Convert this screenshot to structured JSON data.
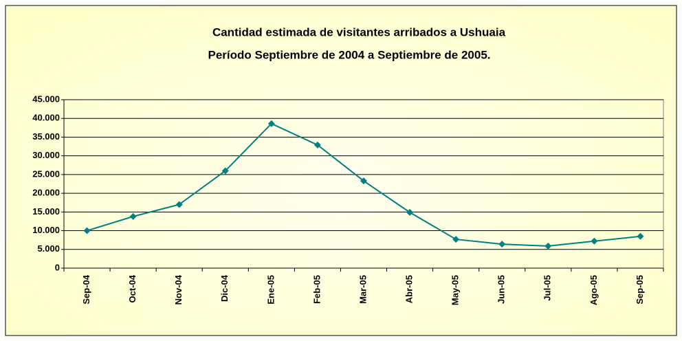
{
  "chart_data": {
    "type": "line",
    "title": "Cantidad estimada de visitantes arribados a Ushuaia",
    "subtitle": "Período Septiembre de 2004 a Septiembre de 2005.",
    "categories": [
      "Sep-04",
      "Oct-04",
      "Nov-04",
      "Dic-04",
      "Ene-05",
      "Feb-05",
      "Mar-05",
      "Abr-05",
      "May-05",
      "Jun-05",
      "Jul-05",
      "Ago-05",
      "Sep-05"
    ],
    "series": [
      {
        "color": "#008080",
        "values": [
          10000,
          13800,
          17000,
          26000,
          38600,
          32900,
          23300,
          14900,
          7700,
          6400,
          5900,
          7200,
          8500
        ]
      }
    ],
    "ylim": [
      0,
      45000
    ],
    "yticks": [
      0,
      {
        "value": 5000,
        "label": "5.000"
      },
      {
        "value": 10000,
        "label": "10.000"
      },
      {
        "value": 15000,
        "label": "15.000"
      },
      {
        "value": 20000,
        "label": "20.000"
      },
      {
        "value": 25000,
        "label": "25.000"
      },
      {
        "value": 30000,
        "label": "30.000"
      },
      {
        "value": 35000,
        "label": "35.000"
      },
      {
        "value": 40000,
        "label": "40.000"
      },
      {
        "value": 45000,
        "label": "45.000"
      }
    ],
    "grid": true
  }
}
